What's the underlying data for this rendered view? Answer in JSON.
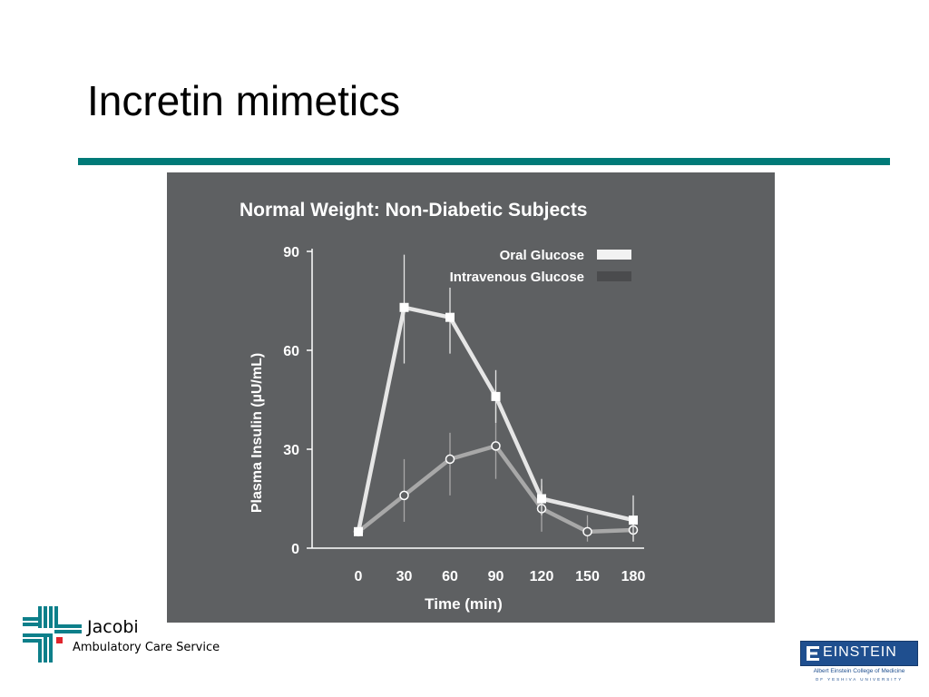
{
  "slide": {
    "title": "Incretin mimetics"
  },
  "colors": {
    "rule": "#007a78",
    "panel": "#5e6062",
    "oral": "#e6e6e6",
    "iv": "#a8a8a8",
    "accent_red": "#e0252d",
    "einstein_blue": "#1f4f8f"
  },
  "chart_data": {
    "type": "line",
    "title": "Normal Weight: Non-Diabetic Subjects",
    "xlabel": "Time (min)",
    "ylabel": "Plasma Insulin (µU/mL)",
    "x": [
      0,
      30,
      60,
      90,
      120,
      150,
      180
    ],
    "x_ticks": [
      "0",
      "30",
      "60",
      "90",
      "120",
      "150",
      "180"
    ],
    "y_ticks": [
      "90",
      "60",
      "30",
      "0"
    ],
    "y_tick_values": [
      90,
      60,
      30,
      0
    ],
    "ylim": [
      0,
      90
    ],
    "xlim": [
      0,
      180
    ],
    "legend_position": "top-right",
    "series": [
      {
        "name": "Oral Glucose",
        "x": [
          0,
          30,
          60,
          90,
          120,
          180
        ],
        "values": [
          5,
          73,
          70,
          46,
          15,
          8.5
        ],
        "error_low": [
          5,
          56,
          59,
          38,
          10,
          2
        ],
        "error_high": [
          5,
          89,
          79,
          54,
          21,
          16
        ],
        "marker": "square",
        "color": "#e6e6e6"
      },
      {
        "name": "Intravenous Glucose",
        "x": [
          0,
          30,
          60,
          90,
          120,
          150,
          180
        ],
        "values": [
          5,
          16,
          27,
          31,
          12,
          5,
          5.5
        ],
        "error_low": [
          5,
          8,
          16,
          21,
          5,
          2,
          2
        ],
        "error_high": [
          5,
          27,
          35,
          43,
          19,
          10,
          9
        ],
        "marker": "circle",
        "color": "#a8a8a8"
      }
    ]
  },
  "logos": {
    "jacobi_name": "Jacobi",
    "jacobi_subtitle": "Ambulatory Care Service",
    "einstein_name": "EINSTEIN",
    "einstein_subtitle": "Albert Einstein College of Medicine",
    "einstein_subtitle2": "OF YESHIVA UNIVERSITY"
  }
}
